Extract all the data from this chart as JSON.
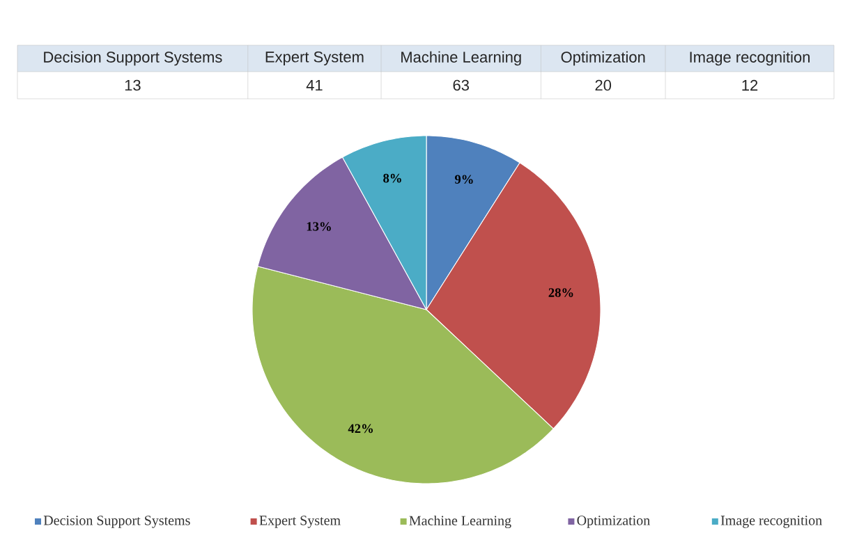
{
  "chart_data": {
    "type": "pie",
    "categories": [
      "Decision Support Systems",
      "Expert System",
      "Machine Learning",
      "Optimization",
      "Image recognition"
    ],
    "values": [
      9,
      28,
      42,
      13,
      8
    ],
    "colors": [
      "#4f81bd",
      "#c0504d",
      "#9bbb59",
      "#8064a2",
      "#4bacc6"
    ],
    "value_labels": [
      "9%",
      "28%",
      "42%",
      "13%",
      "8%"
    ],
    "annotations": [
      "13",
      "41",
      "63",
      "20",
      "12"
    ],
    "legend": "bottom"
  }
}
